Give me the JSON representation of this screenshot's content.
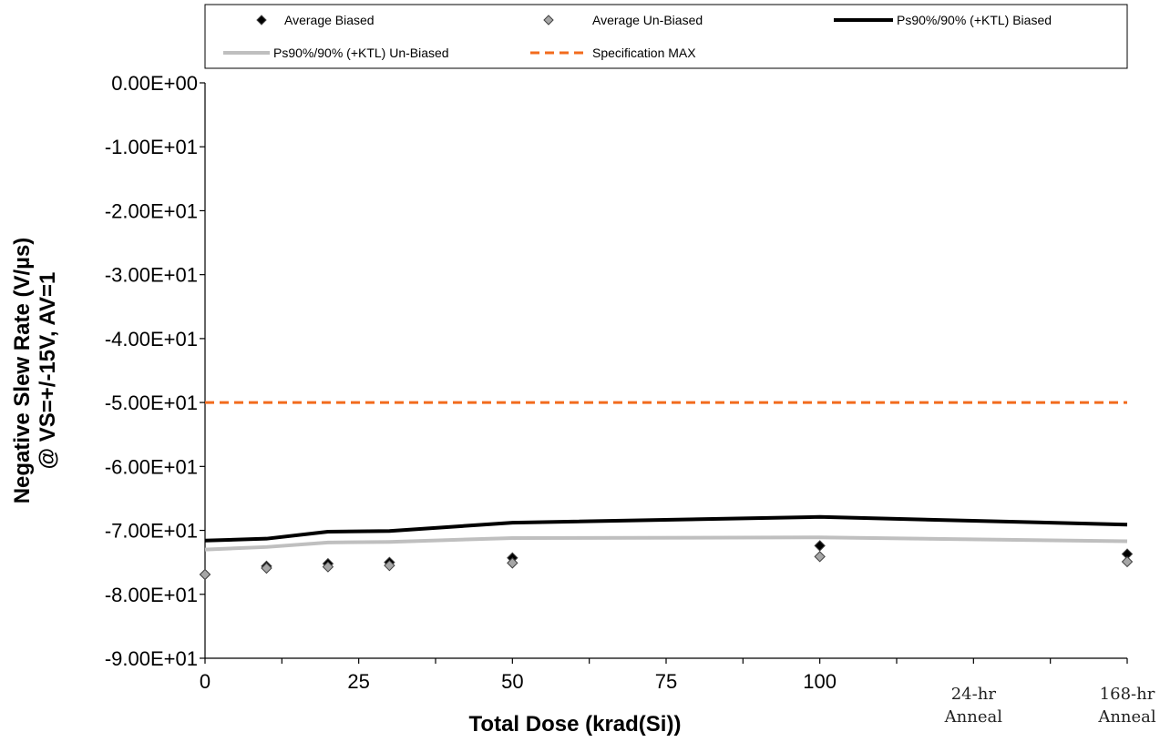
{
  "chart_data": {
    "type": "scatter",
    "title": "",
    "xlabel": "Total Dose (krad(Si))",
    "ylabel_line1": "Negative Slew Rate (V/µs)",
    "ylabel_line2": "@ VS=+/-15V, AV=1",
    "ylim": [
      -90,
      0
    ],
    "xlim": [
      0,
      150
    ],
    "y_ticks": [
      0,
      -10,
      -20,
      -30,
      -40,
      -50,
      -60,
      -70,
      -80,
      -90
    ],
    "y_tick_labels": [
      "0.00E+00",
      "-1.00E+01",
      "-2.00E+01",
      "-3.00E+01",
      "-4.00E+01",
      "-5.00E+01",
      "-6.00E+01",
      "-7.00E+01",
      "-8.00E+01",
      "-9.00E+01"
    ],
    "x_ticks": [
      0,
      25,
      50,
      75,
      100
    ],
    "x_tick_labels": [
      "0",
      "25",
      "50",
      "75",
      "100"
    ],
    "x_category_ticks": [
      {
        "x": 125,
        "line1": "24-hr",
        "line2": "Anneal"
      },
      {
        "x": 150,
        "line1": "168-hr",
        "line2": "Anneal"
      }
    ],
    "grid": false,
    "legend_position": "top",
    "series": [
      {
        "name": "Average Biased",
        "kind": "markers",
        "marker": "diamond",
        "color": "#000000",
        "x": [
          0,
          10,
          20,
          30,
          50,
          100,
          150
        ],
        "y": [
          -76.9,
          -75.6,
          -75.2,
          -75.0,
          -74.3,
          -72.4,
          -73.7
        ]
      },
      {
        "name": "Average Un-Biased",
        "kind": "markers",
        "marker": "diamond",
        "color": "#a6a6a6",
        "x": [
          0,
          10,
          20,
          30,
          50,
          100,
          150
        ],
        "y": [
          -76.9,
          -75.9,
          -75.7,
          -75.5,
          -75.1,
          -74.1,
          -74.9
        ]
      },
      {
        "name": "Ps90%/90% (+KTL) Biased",
        "kind": "line",
        "color": "#000000",
        "x": [
          0,
          10,
          20,
          30,
          50,
          100,
          150
        ],
        "y": [
          -71.6,
          -71.3,
          -70.2,
          -70.1,
          -68.8,
          -67.9,
          -69.1
        ]
      },
      {
        "name": "Ps90%/90% (+KTL) Un-Biased",
        "kind": "line",
        "color": "#bfbfbf",
        "x": [
          0,
          10,
          20,
          30,
          50,
          100,
          150
        ],
        "y": [
          -73.0,
          -72.6,
          -71.9,
          -71.8,
          -71.2,
          -71.1,
          -71.7
        ]
      },
      {
        "name": "Specification MAX",
        "kind": "dashed-line",
        "color": "#f26b1d",
        "x": [
          0,
          150
        ],
        "y": [
          -50,
          -50
        ]
      }
    ]
  }
}
